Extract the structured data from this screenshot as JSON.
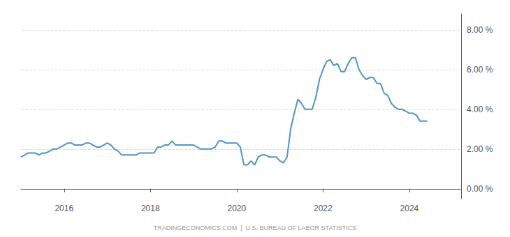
{
  "chart_data": {
    "type": "line",
    "color": "#4d94c8",
    "grid": true,
    "annotations": [
      "TRADINGECONOMICS.COM  |  U.S. BUREAU OF LABOR STATISTICS"
    ],
    "xlim": [
      2015.0,
      2025.2
    ],
    "xticks": [
      2016,
      2018,
      2020,
      2022,
      2024
    ],
    "ylim": [
      -0.5,
      8.8
    ],
    "yticks": [
      {
        "value": 0.0,
        "label": "0.00 %"
      },
      {
        "value": 2.0,
        "label": "2.00 %"
      },
      {
        "value": 4.0,
        "label": "4.00 %"
      },
      {
        "value": 6.0,
        "label": "6.00 %"
      },
      {
        "value": 8.0,
        "label": "8.00 %"
      }
    ],
    "x": [
      2015.0,
      2015.083,
      2015.167,
      2015.25,
      2015.333,
      2015.417,
      2015.5,
      2015.583,
      2015.667,
      2015.75,
      2015.833,
      2015.917,
      2016.0,
      2016.083,
      2016.167,
      2016.25,
      2016.333,
      2016.417,
      2016.5,
      2016.583,
      2016.667,
      2016.75,
      2016.833,
      2016.917,
      2017.0,
      2017.083,
      2017.167,
      2017.25,
      2017.333,
      2017.417,
      2017.5,
      2017.583,
      2017.667,
      2017.75,
      2017.833,
      2017.917,
      2018.0,
      2018.083,
      2018.167,
      2018.25,
      2018.333,
      2018.417,
      2018.5,
      2018.583,
      2018.667,
      2018.75,
      2018.833,
      2018.917,
      2019.0,
      2019.083,
      2019.167,
      2019.25,
      2019.333,
      2019.417,
      2019.5,
      2019.583,
      2019.667,
      2019.75,
      2019.833,
      2019.917,
      2020.0,
      2020.083,
      2020.167,
      2020.25,
      2020.333,
      2020.417,
      2020.5,
      2020.583,
      2020.667,
      2020.75,
      2020.833,
      2020.917,
      2021.0,
      2021.083,
      2021.167,
      2021.25,
      2021.333,
      2021.417,
      2021.5,
      2021.583,
      2021.667,
      2021.75,
      2021.833,
      2021.917,
      2022.0,
      2022.083,
      2022.167,
      2022.25,
      2022.333,
      2022.417,
      2022.5,
      2022.583,
      2022.667,
      2022.75,
      2022.833,
      2022.917,
      2023.0,
      2023.083,
      2023.167,
      2023.25,
      2023.333,
      2023.417,
      2023.5,
      2023.583,
      2023.667,
      2023.75,
      2023.833,
      2023.917,
      2024.0,
      2024.083,
      2024.167,
      2024.25,
      2024.333,
      2024.417
    ],
    "values": [
      1.6,
      1.7,
      1.8,
      1.8,
      1.8,
      1.7,
      1.8,
      1.8,
      1.9,
      2.0,
      2.0,
      2.1,
      2.2,
      2.3,
      2.3,
      2.2,
      2.2,
      2.2,
      2.3,
      2.3,
      2.2,
      2.1,
      2.1,
      2.2,
      2.3,
      2.2,
      2.0,
      1.9,
      1.7,
      1.7,
      1.7,
      1.7,
      1.7,
      1.8,
      1.8,
      1.8,
      1.8,
      1.8,
      2.1,
      2.1,
      2.2,
      2.2,
      2.4,
      2.2,
      2.2,
      2.2,
      2.2,
      2.2,
      2.2,
      2.1,
      2.0,
      2.0,
      2.0,
      2.0,
      2.1,
      2.4,
      2.4,
      2.3,
      2.3,
      2.3,
      2.3,
      2.1,
      1.2,
      1.2,
      1.4,
      1.2,
      1.6,
      1.7,
      1.7,
      1.6,
      1.6,
      1.6,
      1.4,
      1.3,
      1.6,
      3.0,
      3.8,
      4.5,
      4.3,
      4.0,
      4.0,
      4.0,
      4.6,
      5.5,
      6.0,
      6.4,
      6.5,
      6.2,
      6.3,
      5.9,
      5.9,
      6.3,
      6.6,
      6.6,
      6.0,
      5.7,
      5.5,
      5.6,
      5.6,
      5.3,
      5.3,
      4.8,
      4.7,
      4.3,
      4.1,
      4.0,
      4.0,
      3.9,
      3.8,
      3.8,
      3.7,
      3.4,
      3.4,
      3.4
    ]
  }
}
